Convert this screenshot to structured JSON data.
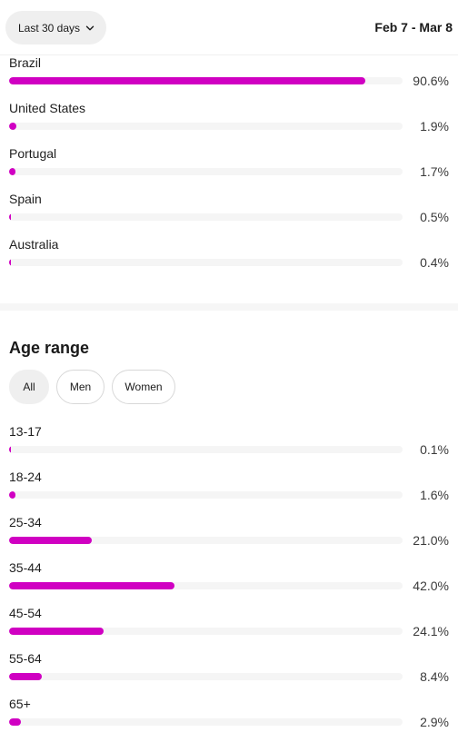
{
  "header": {
    "range_button_label": "Last 30 days",
    "date_range": "Feb 7 - Mar 8"
  },
  "countries": [
    {
      "name": "Brazil",
      "percent_label": "90.6%",
      "value": 90.6
    },
    {
      "name": "United States",
      "percent_label": "1.9%",
      "value": 1.9
    },
    {
      "name": "Portugal",
      "percent_label": "1.7%",
      "value": 1.7
    },
    {
      "name": "Spain",
      "percent_label": "0.5%",
      "value": 0.5
    },
    {
      "name": "Australia",
      "percent_label": "0.4%",
      "value": 0.4
    }
  ],
  "age": {
    "title": "Age range",
    "filters": [
      "All",
      "Men",
      "Women"
    ],
    "selected_filter": "All",
    "ranges": [
      {
        "name": "13-17",
        "percent_label": "0.1%",
        "value": 0.1
      },
      {
        "name": "18-24",
        "percent_label": "1.6%",
        "value": 1.6
      },
      {
        "name": "25-34",
        "percent_label": "21.0%",
        "value": 21.0
      },
      {
        "name": "35-44",
        "percent_label": "42.0%",
        "value": 42.0
      },
      {
        "name": "45-54",
        "percent_label": "24.1%",
        "value": 24.1
      },
      {
        "name": "55-64",
        "percent_label": "8.4%",
        "value": 8.4
      },
      {
        "name": "65+",
        "percent_label": "2.9%",
        "value": 2.9
      }
    ]
  },
  "colors": {
    "bar": "#d000c2",
    "track": "#f5f5f5"
  },
  "icons": {
    "range_button": "chevron-down-icon"
  }
}
